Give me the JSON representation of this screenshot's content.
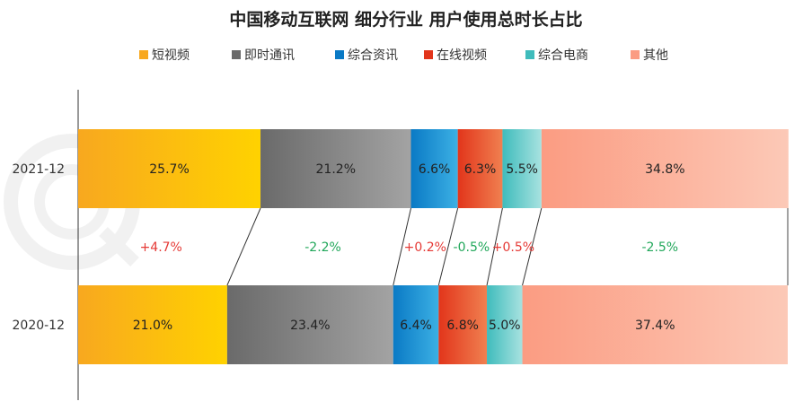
{
  "chart_data": {
    "type": "bar",
    "orientation": "horizontal",
    "stacked": true,
    "normalized": true,
    "title": "中国移动互联网 细分行业 用户使用总时长占比",
    "categories": [
      "2021-12",
      "2020-12"
    ],
    "series": [
      {
        "name": "短视频",
        "values": [
          25.7,
          21.0
        ],
        "labels": [
          "25.7%",
          "21.0%"
        ]
      },
      {
        "name": "即时通讯",
        "values": [
          21.2,
          23.4
        ],
        "labels": [
          "21.2%",
          "23.4%"
        ]
      },
      {
        "name": "综合资讯",
        "values": [
          6.6,
          6.4
        ],
        "labels": [
          "6.6%",
          "6.4%"
        ]
      },
      {
        "name": "在线视频",
        "values": [
          6.3,
          6.8
        ],
        "labels": [
          "6.3%",
          "6.8%"
        ]
      },
      {
        "name": "综合电商",
        "values": [
          5.5,
          5.0
        ],
        "labels": [
          "5.5%",
          "5.0%"
        ]
      },
      {
        "name": "其他",
        "values": [
          34.8,
          37.4
        ],
        "labels": [
          "34.8%",
          "37.4%"
        ]
      }
    ],
    "changes": [
      "+4.7%",
      "-2.2%",
      "+0.2%",
      "-0.5%",
      "+0.5%",
      "-2.5%"
    ],
    "colors": {
      "短视频": [
        "#f8a81f",
        "#ffd200"
      ],
      "即时通讯": [
        "#6a6a6a",
        "#a3a3a3"
      ],
      "综合资讯": [
        "#0a7ac5",
        "#3cb0e4"
      ],
      "在线视频": [
        "#e2351b",
        "#f08050"
      ],
      "综合电商": [
        "#3fbcbc",
        "#a8e2e0"
      ],
      "其他": [
        "#fb9c82",
        "#fcc9b7"
      ],
      "increase": "#e53935",
      "decrease": "#21a75a"
    },
    "xlim": [
      0,
      100
    ],
    "legend_position": "top",
    "grid": false
  }
}
